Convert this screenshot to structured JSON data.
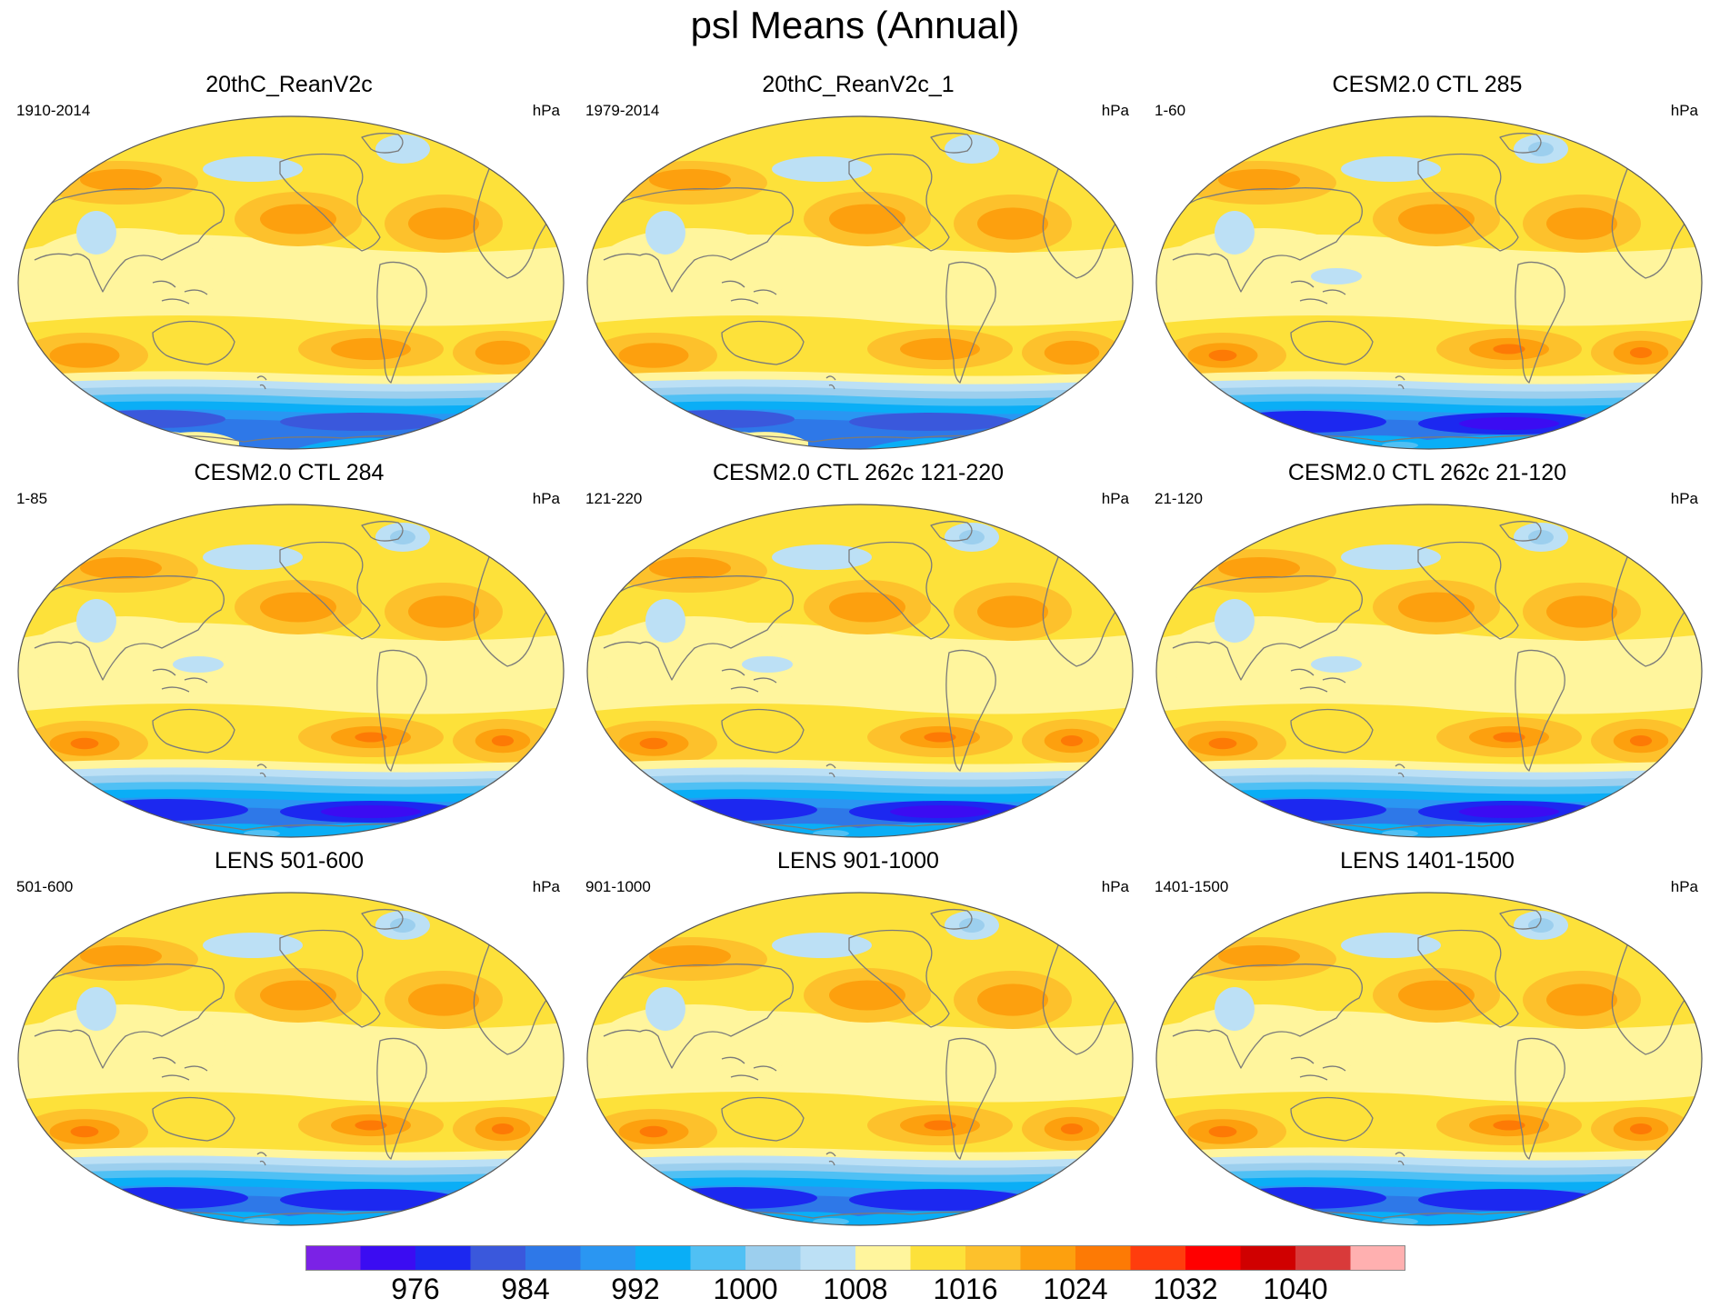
{
  "title": "psl Means (Annual)",
  "colors": {
    "fill_levels": [
      "#7b22e6",
      "#3b0cf2",
      "#1c28f0",
      "#3a58dc",
      "#2e78e8",
      "#2a96f2",
      "#0aaef6",
      "#50c0f4",
      "#9ccfee",
      "#bce0f5",
      "#fff59d",
      "#fde13a",
      "#fdc12c",
      "#fda00e",
      "#fd7a05",
      "#ff3d0d",
      "#ff0000",
      "#d00000",
      "#d93a3a",
      "#ffb0b0"
    ],
    "ocean_mid": "#fff59d",
    "land_line": "#7a7a7a"
  },
  "colorbar": {
    "label_values": [
      "976",
      "984",
      "992",
      "1000",
      "1008",
      "1016",
      "1024",
      "1032",
      "1040"
    ]
  },
  "panels": [
    {
      "title": "20thC_ReanV2c",
      "left_label": "1910-2014",
      "right_label": "hPa",
      "variant": "rean"
    },
    {
      "title": "20thC_ReanV2c_1",
      "left_label": "1979-2014",
      "right_label": "hPa",
      "variant": "rean"
    },
    {
      "title": "CESM2.0 CTL 285",
      "left_label": "1-60",
      "right_label": "hPa",
      "variant": "model"
    },
    {
      "title": "CESM2.0 CTL 284",
      "left_label": "1-85",
      "right_label": "hPa",
      "variant": "model"
    },
    {
      "title": "CESM2.0 CTL 262c 121-220",
      "left_label": "121-220",
      "right_label": "hPa",
      "variant": "model"
    },
    {
      "title": "CESM2.0 CTL 262c 21-120",
      "left_label": "21-120",
      "right_label": "hPa",
      "variant": "model"
    },
    {
      "title": "LENS 501-600",
      "left_label": "501-600",
      "right_label": "hPa",
      "variant": "lens"
    },
    {
      "title": "LENS 901-1000",
      "left_label": "901-1000",
      "right_label": "hPa",
      "variant": "lens"
    },
    {
      "title": "LENS 1401-1500",
      "left_label": "1401-1500",
      "right_label": "hPa",
      "variant": "lens"
    }
  ]
}
